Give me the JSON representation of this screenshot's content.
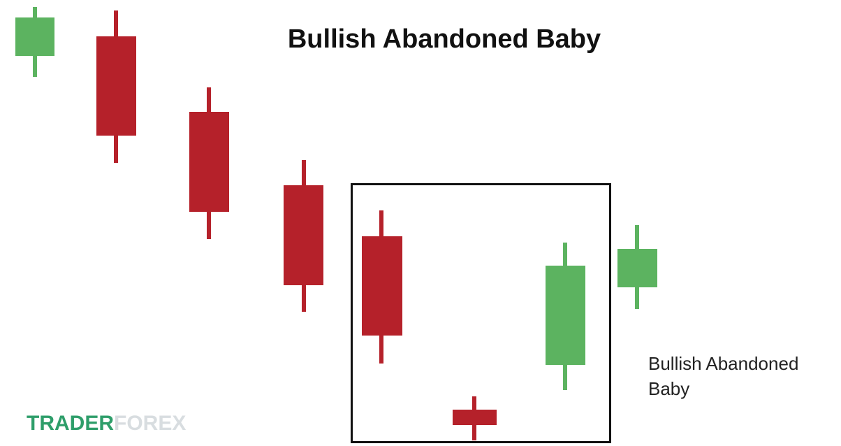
{
  "title": "Bullish Abandoned Baby",
  "annotation": {
    "lines": [
      "Bullish Abandoned",
      "Baby"
    ]
  },
  "logo": {
    "part1": "TRADER",
    "part2": "FOREX"
  }
}
